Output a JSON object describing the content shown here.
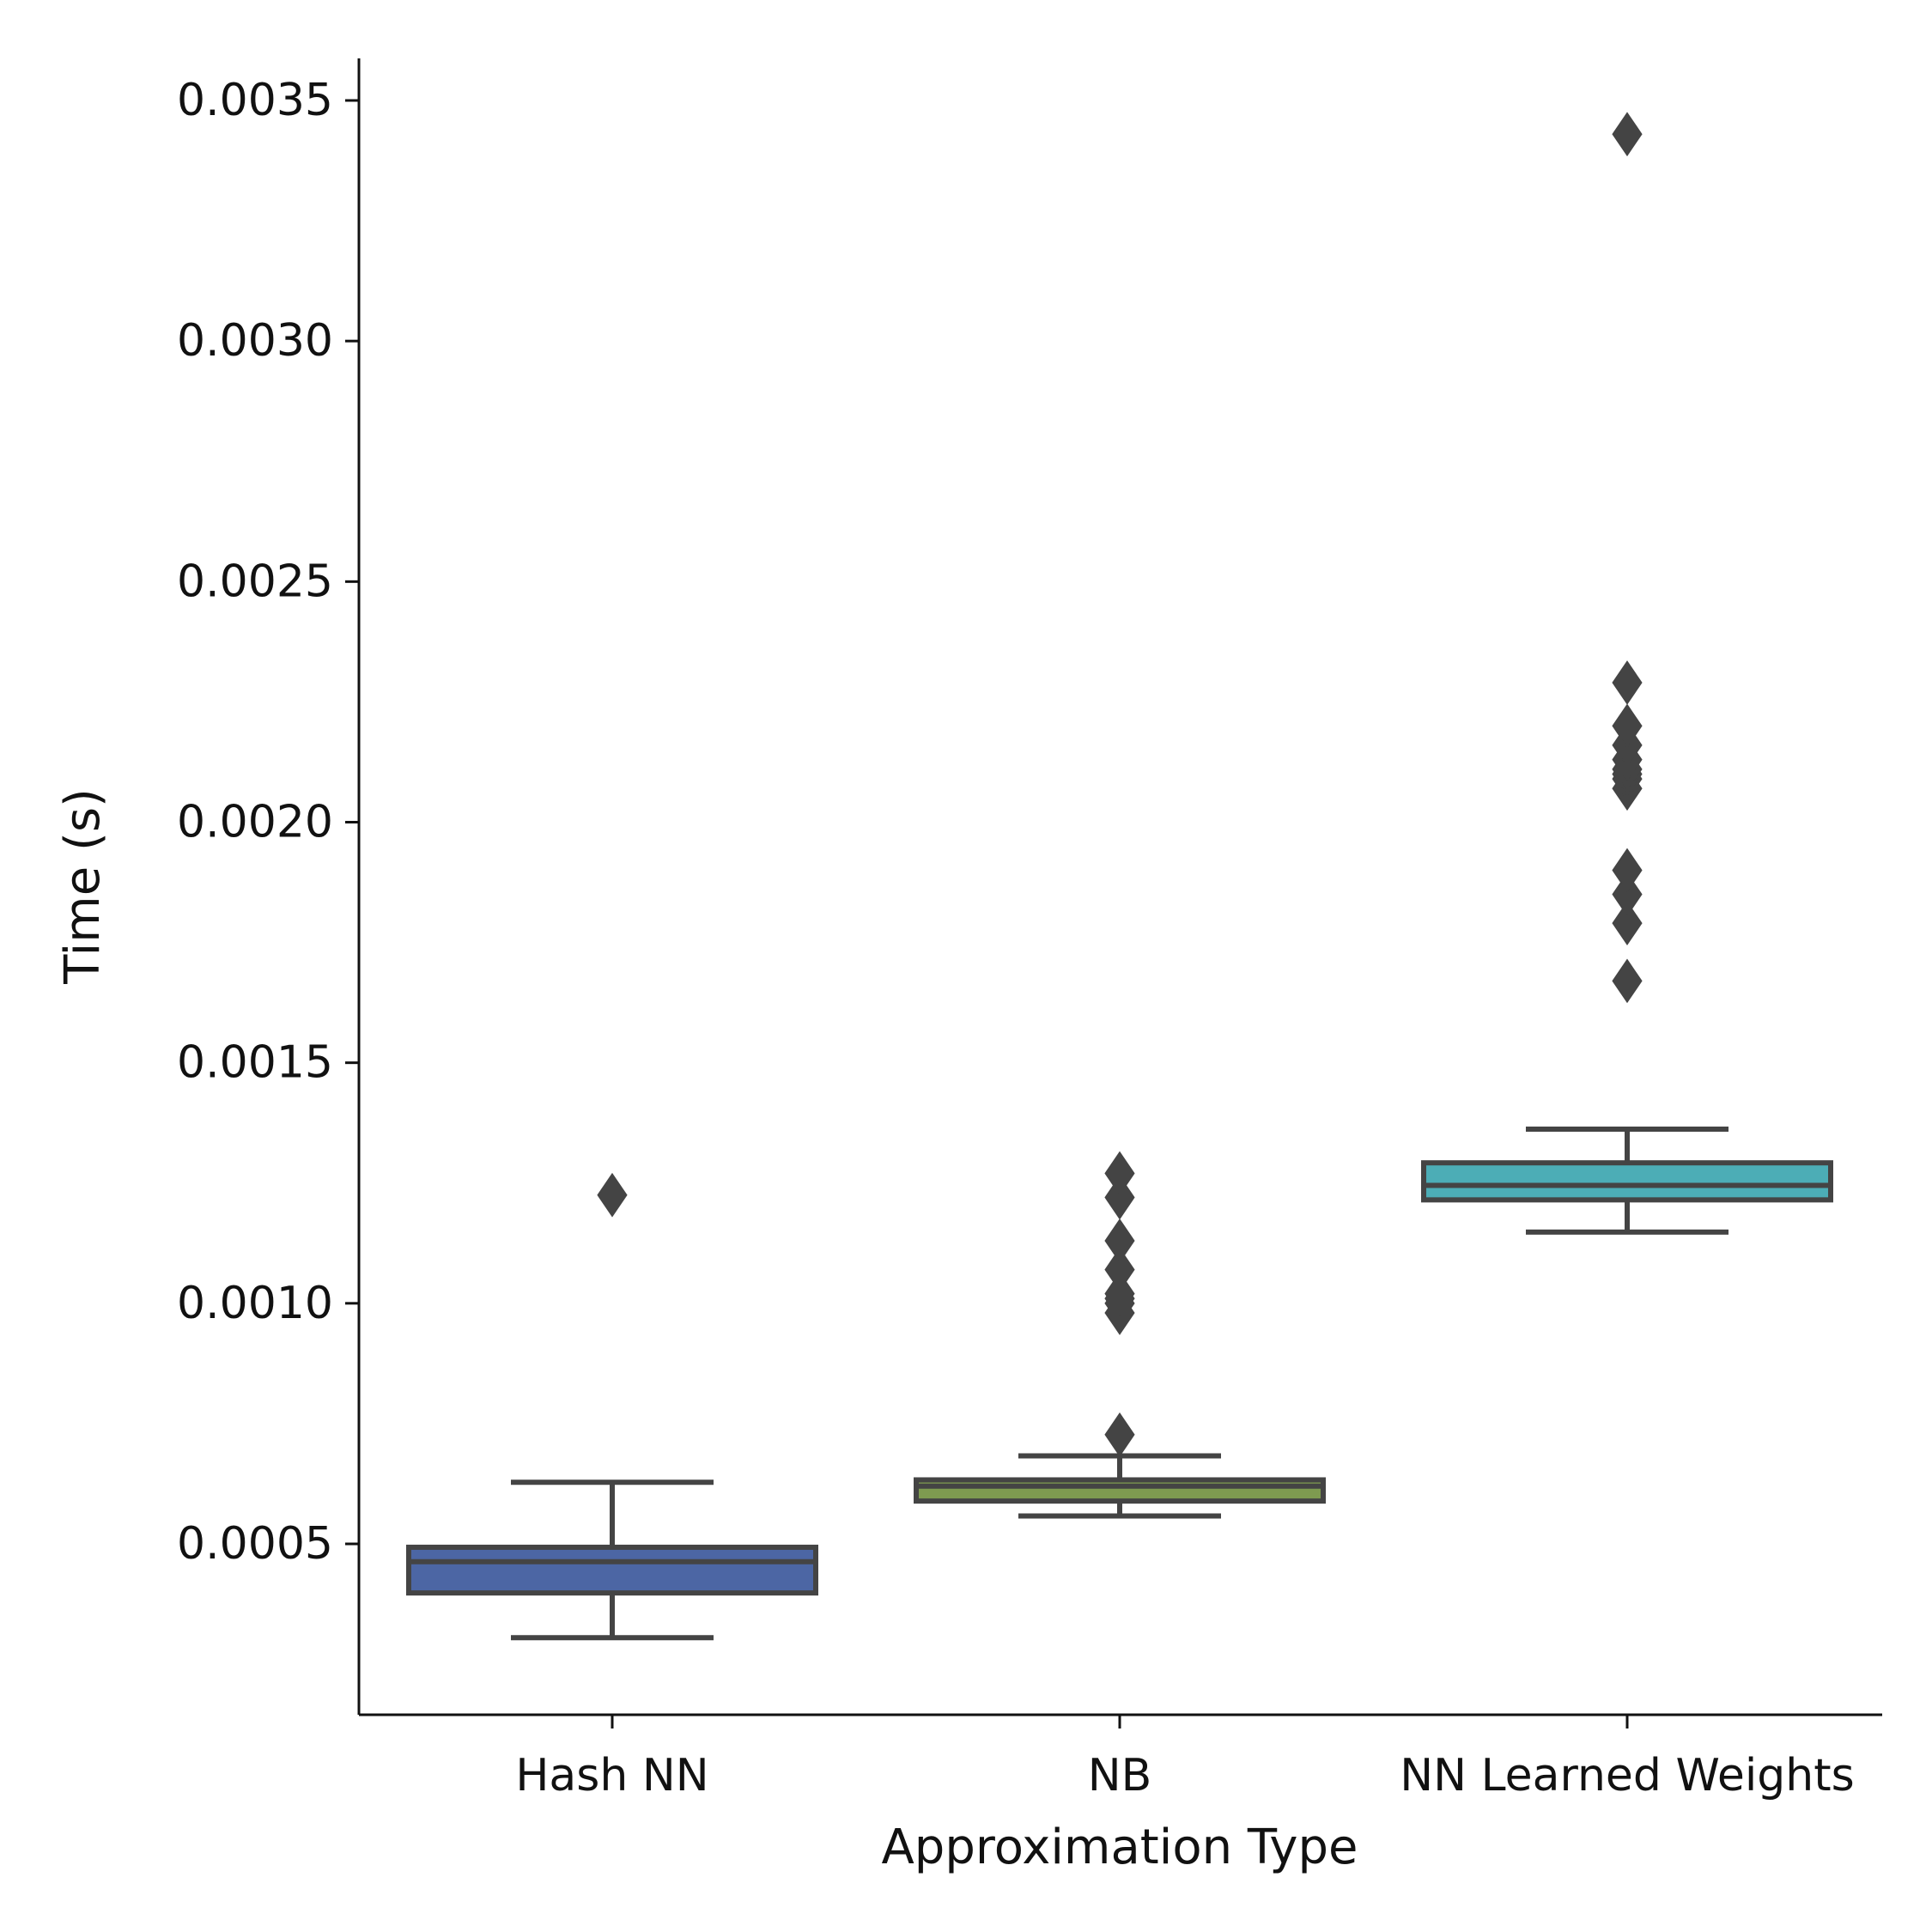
{
  "chart_data": {
    "type": "box",
    "xlabel": "Approximation Type",
    "ylabel": "Time (s)",
    "ylim": [
      0.00015,
      0.0036
    ],
    "yticks": [
      0.0005,
      0.001,
      0.0015,
      0.002,
      0.0025,
      0.003,
      0.0035
    ],
    "ytick_labels": [
      "0.0005",
      "0.0010",
      "0.0015",
      "0.0020",
      "0.0025",
      "0.0030",
      "0.0035"
    ],
    "categories": [
      "Hash NN",
      "NB",
      "NN Learned Weights"
    ],
    "grid": false,
    "legend": "none",
    "boxes": [
      {
        "category": "Hash NN",
        "color": "#4c66a4",
        "whisker_low": 0.000305,
        "q1": 0.000398,
        "median": 0.000463,
        "q3": 0.000493,
        "whisker_high": 0.000628,
        "outliers": [
          0.001225
        ]
      },
      {
        "category": "NB",
        "color": "#7e9b50",
        "whisker_low": 0.000558,
        "q1": 0.000589,
        "median": 0.00062,
        "q3": 0.000633,
        "whisker_high": 0.000683,
        "outliers": [
          0.000727,
          0.00098,
          0.001,
          0.00101,
          0.00102,
          0.00107,
          0.00113,
          0.00122,
          0.00127
        ]
      },
      {
        "category": "NN Learned Weights",
        "color": "#4cadb6",
        "whisker_low": 0.001148,
        "q1": 0.001215,
        "median": 0.001245,
        "q3": 0.001292,
        "whisker_high": 0.001362,
        "outliers": [
          0.00167,
          0.00179,
          0.00185,
          0.0019,
          0.00207,
          0.00209,
          0.0021,
          0.00211,
          0.00213,
          0.00216,
          0.0022,
          0.00229,
          0.00343
        ]
      }
    ],
    "edge_color": "#444444"
  }
}
